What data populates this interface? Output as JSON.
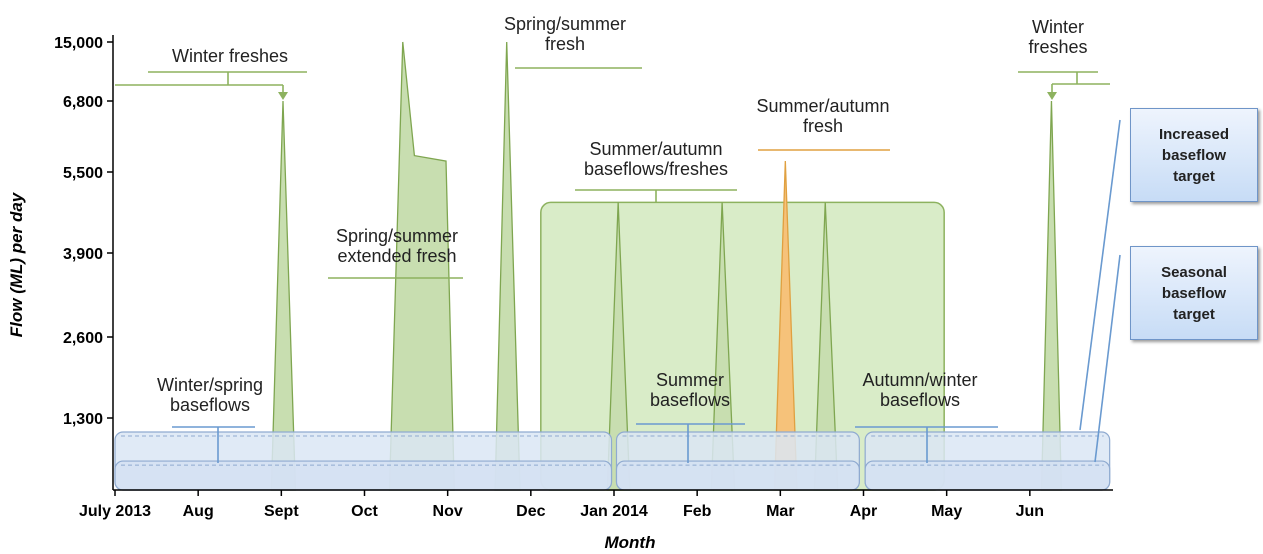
{
  "chart_data": {
    "type": "area",
    "ylabel": "Flow (ML) per day",
    "xlabel": "Month",
    "xlim": [
      0,
      12
    ],
    "ylim": [
      0,
      15000
    ],
    "xticks": [
      {
        "value": 0,
        "label": "July 2013"
      },
      {
        "value": 1,
        "label": "Aug"
      },
      {
        "value": 2,
        "label": "Sept"
      },
      {
        "value": 3,
        "label": "Oct"
      },
      {
        "value": 4,
        "label": "Nov"
      },
      {
        "value": 5,
        "label": "Dec"
      },
      {
        "value": 6,
        "label": "Jan 2014"
      },
      {
        "value": 7,
        "label": "Feb"
      },
      {
        "value": 8,
        "label": "Mar"
      },
      {
        "value": 9,
        "label": "Apr"
      },
      {
        "value": 10,
        "label": "May"
      },
      {
        "value": 11,
        "label": "Jun"
      }
    ],
    "yticks": [
      {
        "value": 1300,
        "label": "1,300"
      },
      {
        "value": 2600,
        "label": "2,600"
      },
      {
        "value": 3900,
        "label": "3,900"
      },
      {
        "value": 5500,
        "label": "5,500"
      },
      {
        "value": 6800,
        "label": "6,800"
      },
      {
        "value": 15000,
        "label": "15,000"
      }
    ],
    "envelope": {
      "x": [
        5.12,
        9.97
      ],
      "value": 4900,
      "color": "#d9ecc8"
    },
    "bands": [
      {
        "name": "Increased baseflow target",
        "value": 975,
        "color": "#dbe6f5",
        "segments": [
          [
            0,
            5.97
          ],
          [
            6.03,
            8.95
          ],
          [
            9.02,
            11.96
          ]
        ]
      },
      {
        "name": "Seasonal baseflow target",
        "value": 450,
        "color": "#d3e0f2",
        "segments": [
          [
            0,
            5.97
          ],
          [
            6.03,
            8.95
          ],
          [
            9.02,
            11.96
          ]
        ]
      }
    ],
    "series": [
      {
        "color": "#c8deb0",
        "x": [
          1.88,
          2.02,
          2.17
        ],
        "values": [
          0,
          6800,
          0
        ]
      },
      {
        "color": "#c8deb0",
        "x": [
          3.3,
          3.46,
          3.6,
          3.98,
          4.08
        ],
        "values": [
          0,
          15000,
          5800,
          5700,
          0
        ]
      },
      {
        "color": "#c8deb0",
        "x": [
          4.57,
          4.71,
          4.87
        ],
        "values": [
          0,
          15000,
          0
        ]
      },
      {
        "color": "#c8deb0",
        "x": [
          5.92,
          6.05,
          6.19
        ],
        "values": [
          0,
          4900,
          0
        ]
      },
      {
        "color": "#c8deb0",
        "x": [
          7.17,
          7.3,
          7.45
        ],
        "values": [
          0,
          4900,
          0
        ]
      },
      {
        "color": "#f6c27a",
        "x": [
          7.93,
          8.06,
          8.2
        ],
        "values": [
          0,
          5700,
          0
        ]
      },
      {
        "color": "#c8deb0",
        "x": [
          8.41,
          8.54,
          8.69
        ],
        "values": [
          0,
          4900,
          0
        ]
      },
      {
        "color": "#c8deb0",
        "x": [
          11.14,
          11.26,
          11.38
        ],
        "values": [
          0,
          6800,
          0
        ]
      }
    ],
    "annotations": [
      "Winter freshes",
      "Spring/summer\nfresh",
      "Spring/summer\nextended fresh",
      "Summer/autumn\nbaseflows/freshes",
      "Summer/autumn\nfresh",
      "Winter\nfreshes",
      "Winter/spring\nbaseflows",
      "Summer\nbaseflows",
      "Autumn/winter\nbaseflows"
    ]
  }
}
